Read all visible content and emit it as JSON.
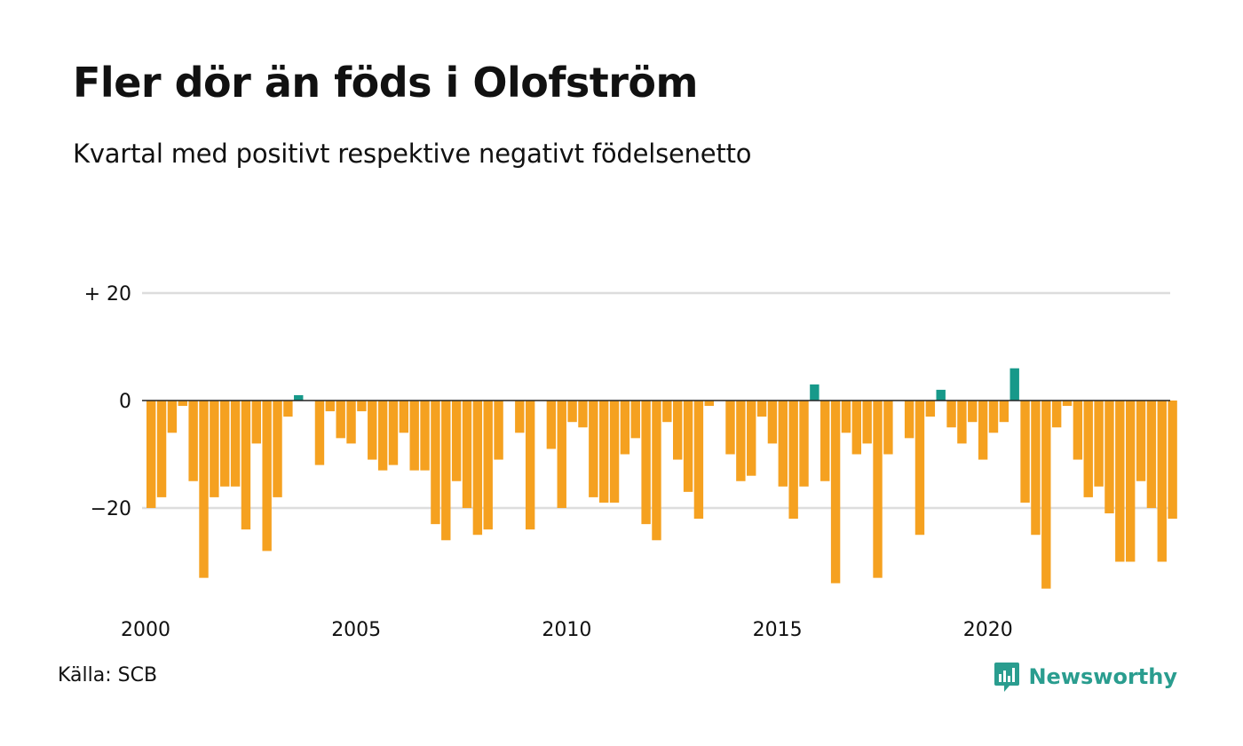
{
  "title": "Fler dör än föds i Olofström",
  "subtitle": "Kvartal med positivt respektive negativt födelsenetto",
  "source": "Källa: SCB",
  "brand": "Newsworthy",
  "colors": {
    "positive": "#17998a",
    "negative": "#f5a120",
    "brand": "#2a9d8f",
    "grid": "#dddddd",
    "zero_line": "#222222"
  },
  "chart_data": {
    "type": "bar",
    "x_start": 2000,
    "x_step": "quarter",
    "values": [
      -20,
      -18,
      -6,
      -1,
      -15,
      -33,
      -18,
      -16,
      -16,
      -24,
      -8,
      -28,
      -18,
      -3,
      1,
      0,
      -12,
      -2,
      -7,
      -8,
      -2,
      -11,
      -13,
      -12,
      -6,
      -13,
      -13,
      -23,
      -26,
      -15,
      -20,
      -25,
      -24,
      -11,
      0,
      -6,
      -24,
      0,
      -9,
      -20,
      -4,
      -5,
      -18,
      -19,
      -19,
      -10,
      -7,
      -23,
      -26,
      -4,
      -11,
      -17,
      -22,
      -1,
      0,
      -10,
      -15,
      -14,
      -3,
      -8,
      -16,
      -22,
      -16,
      3,
      -15,
      -34,
      -6,
      -10,
      -8,
      -33,
      -10,
      0,
      -7,
      -25,
      -3,
      2,
      -5,
      -8,
      -4,
      -11,
      -6,
      -4,
      6,
      -19,
      -25,
      -35,
      -5,
      -1,
      -11,
      -18,
      -16,
      -21,
      -30,
      -30,
      -15,
      -20,
      -30,
      -22
    ],
    "x_ticks": [
      "2000",
      "2005",
      "2010",
      "2015",
      "2020"
    ],
    "y_ticks": [
      "+ 20",
      "0",
      "−20"
    ],
    "y_tick_values": [
      20,
      0,
      -20
    ],
    "ylim": [
      -40,
      20
    ],
    "grid": true
  }
}
